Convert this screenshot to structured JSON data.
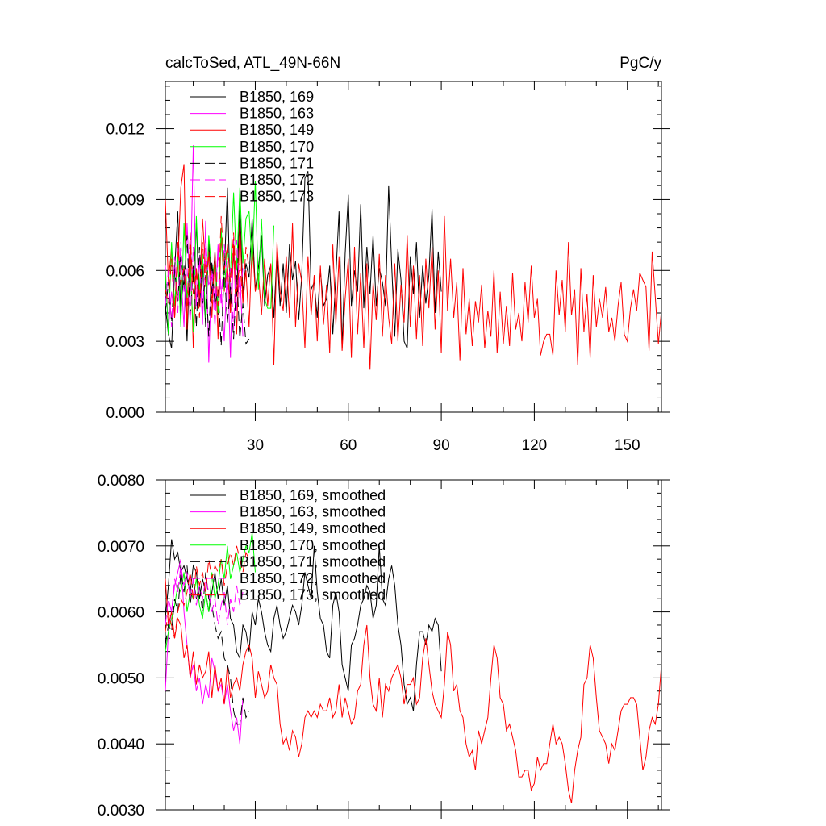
{
  "title_left": "calcToSed, ATL_49N-66N",
  "title_right": "PgC/y",
  "chart_data": [
    {
      "type": "line",
      "panel": "top",
      "title": "calcToSed, ATL_49N-66N",
      "units": "PgC/y",
      "xlim": [
        1,
        161
      ],
      "ylim": [
        0.0,
        0.014
      ],
      "x_ticks": [
        30,
        60,
        90,
        120,
        150
      ],
      "y_ticks": [
        "0.000",
        "0.003",
        "0.006",
        "0.009",
        "0.012"
      ],
      "grid": false,
      "legend_position": "top-left",
      "series": [
        {
          "name": "B1850, 169",
          "color": "#000000",
          "dash": "solid",
          "values": [
            0.0045,
            0.0033,
            0.0027,
            0.006,
            0.0085,
            0.004,
            0.0062,
            0.003,
            0.007,
            0.0055,
            0.008,
            0.0045,
            0.0062,
            0.0036,
            0.0072,
            0.005,
            0.0068,
            0.0041,
            0.0076,
            0.0058,
            0.0095,
            0.0044,
            0.0067,
            0.0049,
            0.0088,
            0.005,
            0.0063,
            0.0057,
            0.0082,
            0.0052,
            0.0061,
            0.0075,
            0.0045,
            0.0058,
            0.0062,
            0.004,
            0.0068,
            0.0045,
            0.0063,
            0.0042,
            0.0071,
            0.0056,
            0.0064,
            0.0039,
            0.0058,
            0.0099,
            0.0102,
            0.0052,
            0.0055,
            0.004,
            0.006,
            0.0045,
            0.0048,
            0.0062,
            0.0033,
            0.0058,
            0.0085,
            0.0027,
            0.0067,
            0.0092,
            0.0045,
            0.006,
            0.0051,
            0.0088,
            0.0044,
            0.007,
            0.005,
            0.0075,
            0.0045,
            0.0061,
            0.0055,
            0.0045,
            0.0096,
            0.0062,
            0.0032,
            0.0069,
            0.0056,
            0.003,
            0.0027,
            0.0066,
            0.005,
            0.0072,
            0.004,
            0.0062,
            0.0046,
            0.0058,
            0.0086,
            0.0042,
            0.0068,
            0.0051
          ]
        },
        {
          "name": "B1850, 163",
          "color": "#ff00ff",
          "dash": "solid",
          "values": [
            0.0062,
            0.0035,
            0.0051,
            0.004,
            0.0072,
            0.006,
            0.0036,
            0.008,
            0.005,
            0.0113,
            0.0045,
            0.0066,
            0.0037,
            0.0081,
            0.0021,
            0.0063,
            0.0044,
            0.0071,
            0.0052,
            0.003,
            0.0064,
            0.0023,
            0.0074,
            0.0043,
            0.0058,
            0.0032
          ]
        },
        {
          "name": "B1850, 149",
          "color": "#ff0000",
          "dash": "solid",
          "values": [
            0.009,
            0.0055,
            0.007,
            0.004,
            0.0062,
            0.0095,
            0.0105,
            0.0035,
            0.0073,
            0.0027,
            0.0061,
            0.0048,
            0.0082,
            0.0059,
            0.0066,
            0.004,
            0.0068,
            0.0031,
            0.0075,
            0.0051,
            0.0062,
            0.0042,
            0.0071,
            0.0033,
            0.008,
            0.0046,
            0.006,
            0.0036,
            0.0073,
            0.0051,
            0.0059,
            0.0041,
            0.0065,
            0.0045,
            0.0063,
            0.002,
            0.0072,
            0.0051,
            0.0043,
            0.0066,
            0.004,
            0.008,
            0.0036,
            0.0063,
            0.0055,
            0.0027,
            0.0066,
            0.0041,
            0.0058,
            0.003,
            0.0062,
            0.0037,
            0.0054,
            0.0025,
            0.0071,
            0.0037,
            0.0066,
            0.0026,
            0.0048,
            0.0065,
            0.0023,
            0.007,
            0.0033,
            0.0059,
            0.0027,
            0.0063,
            0.0018,
            0.0055,
            0.0039,
            0.0067,
            0.0032,
            0.0058,
            0.004,
            0.0029,
            0.0063,
            0.003,
            0.0054,
            0.0038,
            0.0075,
            0.0036,
            0.0062,
            0.0031,
            0.0058,
            0.0028,
            0.0065,
            0.0044,
            0.007,
            0.0035,
            0.006,
            0.0025,
            0.0083,
            0.0043,
            0.0065,
            0.004,
            0.0055,
            0.0022,
            0.0061,
            0.0033,
            0.0048,
            0.0028,
            0.0047,
            0.0038,
            0.0054,
            0.0027,
            0.0043,
            0.0032,
            0.006,
            0.0025,
            0.0051,
            0.0029,
            0.0045,
            0.0028,
            0.0059,
            0.0035,
            0.0042,
            0.003,
            0.0055,
            0.0038,
            0.0062,
            0.004,
            0.0048,
            0.0024,
            0.003,
            0.0033,
            0.0033,
            0.0024,
            0.006,
            0.0041,
            0.0056,
            0.0034,
            0.0072,
            0.0041,
            0.0052,
            0.002,
            0.0061,
            0.0034,
            0.005,
            0.0023,
            0.0058,
            0.0036,
            0.0048,
            0.004,
            0.0053,
            0.0034,
            0.004,
            0.003,
            0.0045,
            0.0055,
            0.0033,
            0.003,
            0.0044,
            0.0052,
            0.0043,
            0.0059,
            0.0056,
            0.0053,
            0.0026,
            0.0068,
            0.0049,
            0.0029,
            0.0043,
            0.0079,
            0.0049,
            0.0029,
            0.0054,
            0.002,
            0.0031,
            0.0065,
            0.0038,
            0.0044
          ]
        },
        {
          "name": "B1850, 170",
          "color": "#00ff00",
          "dash": "solid",
          "values": [
            0.006,
            0.0033,
            0.0072,
            0.0045,
            0.0066,
            0.0036,
            0.008,
            0.0048,
            0.0062,
            0.0034,
            0.0083,
            0.0052,
            0.0067,
            0.004,
            0.0075,
            0.0058,
            0.0064,
            0.0042,
            0.0078,
            0.0052,
            0.0069,
            0.0058,
            0.0093,
            0.006,
            0.0095,
            0.0063,
            0.0082,
            0.0085,
            0.0061,
            0.0098,
            0.0052,
            0.0082,
            0.0048,
            0.0044,
            0.0044,
            0.0079
          ]
        },
        {
          "name": "B1850, 171",
          "color": "#000000",
          "dash": "12,6",
          "values": [
            0.0042,
            0.0055,
            0.0038,
            0.006,
            0.0047,
            0.0068,
            0.0052,
            0.0075,
            0.004,
            0.0062,
            0.0036,
            0.007,
            0.0046,
            0.0058,
            0.0032,
            0.0064,
            0.0045,
            0.0052,
            0.0028,
            0.0061,
            0.0038,
            0.0053,
            0.0031,
            0.0058,
            0.0031,
            0.0046,
            0.0029,
            0.0031
          ]
        },
        {
          "name": "B1850, 172",
          "color": "#ff00ff",
          "dash": "12,6",
          "values": [
            0.0045,
            0.006,
            0.0036,
            0.0066,
            0.0042,
            0.0072,
            0.0051,
            0.0061,
            0.0038,
            0.007,
            0.0049,
            0.0064,
            0.004,
            0.0074,
            0.0053,
            0.006,
            0.0036,
            0.0068,
            0.0045,
            0.0071,
            0.0052,
            0.0062,
            0.0035,
            0.0073,
            0.0048,
            0.0061
          ]
        },
        {
          "name": "B1850, 173",
          "color": "#ff0000",
          "dash": "12,6",
          "values": [
            0.0052,
            0.0046,
            0.0065,
            0.004,
            0.0072,
            0.0054,
            0.0061,
            0.0045,
            0.0076,
            0.005,
            0.006,
            0.004,
            0.0072,
            0.0053,
            0.0068,
            0.0046,
            0.0066,
            0.0045,
            0.0083,
            0.006,
            0.0071,
            0.0055,
            0.0076,
            0.0051,
            0.0063,
            0.0047,
            0.007,
            0.0061
          ]
        }
      ]
    },
    {
      "type": "line",
      "panel": "bottom",
      "xlim": [
        1,
        161
      ],
      "ylim": [
        0.003,
        0.008
      ],
      "y_ticks": [
        "0.0030",
        "0.0040",
        "0.0050",
        "0.0060",
        "0.0070",
        "0.0080"
      ],
      "grid": false,
      "legend_position": "top-left",
      "series": [
        {
          "name": "B1850, 169, smoothed",
          "color": "#000000",
          "dash": "solid",
          "values": [
            0.0059,
            0.0064,
            0.0071,
            0.0068,
            0.0069,
            0.0066,
            0.0067,
            0.0065,
            0.0063,
            0.0067,
            0.0066,
            0.0062,
            0.0065,
            0.0063,
            0.006,
            0.0063,
            0.0066,
            0.0062,
            0.0065,
            0.0061,
            0.0064,
            0.0059,
            0.0058,
            0.0054,
            0.0053,
            0.0058,
            0.0057,
            0.0054,
            0.006,
            0.0058,
            0.0062,
            0.006,
            0.0057,
            0.0055,
            0.0054,
            0.0059,
            0.0061,
            0.0058,
            0.0056,
            0.0057,
            0.0059,
            0.0061,
            0.006,
            0.0058,
            0.0061,
            0.0066,
            0.0064,
            0.0062,
            0.007,
            0.0063,
            0.0059,
            0.0058,
            0.0054,
            0.0053,
            0.0061,
            0.0063,
            0.006,
            0.0052,
            0.005,
            0.0048,
            0.0055,
            0.0056,
            0.0058,
            0.0061,
            0.0062,
            0.0064,
            0.0063,
            0.0059,
            0.0061,
            0.007,
            0.0062,
            0.0061,
            0.0065,
            0.0067,
            0.0064,
            0.0058,
            0.0055,
            0.0049,
            0.0046,
            0.0047,
            0.0045,
            0.0052,
            0.0057,
            0.0057,
            0.0055,
            0.0058,
            0.0057,
            0.0059,
            0.0058,
            0.0051
          ]
        },
        {
          "name": "B1850, 163, smoothed",
          "color": "#ff00ff",
          "dash": "solid",
          "values": [
            0.0048,
            0.0057,
            0.006,
            0.0064,
            0.0066,
            0.0068,
            0.006,
            0.0055,
            0.005,
            0.0052,
            0.0048,
            0.005,
            0.0046,
            0.0049,
            0.0047,
            0.0053,
            0.0051,
            0.0048,
            0.0049,
            0.0046,
            0.0049,
            0.0045,
            0.0042,
            0.0044,
            0.004,
            0.0047
          ]
        },
        {
          "name": "B1850, 149, smoothed",
          "color": "#ff0000",
          "dash": "solid",
          "values": [
            0.0065,
            0.0058,
            0.006,
            0.0056,
            0.0059,
            0.0058,
            0.0053,
            0.0055,
            0.005,
            0.0054,
            0.0049,
            0.0052,
            0.005,
            0.0051,
            0.0054,
            0.0047,
            0.0052,
            0.0048,
            0.005,
            0.0046,
            0.0052,
            0.0047,
            0.0049,
            0.005,
            0.0048,
            0.0052,
            0.0054,
            0.0055,
            0.0053,
            0.0047,
            0.0051,
            0.0049,
            0.0047,
            0.0048,
            0.0052,
            0.005,
            0.0049,
            0.0043,
            0.004,
            0.0041,
            0.0039,
            0.0042,
            0.0041,
            0.0038,
            0.004,
            0.0044,
            0.0045,
            0.0044,
            0.0045,
            0.0044,
            0.0046,
            0.0045,
            0.0045,
            0.0047,
            0.0044,
            0.0045,
            0.0049,
            0.0044,
            0.0047,
            0.0045,
            0.0043,
            0.0044,
            0.0048,
            0.0049,
            0.0055,
            0.0058,
            0.005,
            0.0046,
            0.0045,
            0.005,
            0.0044,
            0.0049,
            0.0048,
            0.005,
            0.0051,
            0.0052,
            0.005,
            0.0046,
            0.0049,
            0.0049,
            0.005,
            0.0046,
            0.0047,
            0.0053,
            0.0056,
            0.0052,
            0.0048,
            0.0046,
            0.0045,
            0.0044,
            0.0049,
            0.0057,
            0.0055,
            0.0048,
            0.0049,
            0.0045,
            0.0044,
            0.004,
            0.0038,
            0.0039,
            0.0036,
            0.0042,
            0.004,
            0.0042,
            0.0044,
            0.005,
            0.0055,
            0.0053,
            0.0047,
            0.0046,
            0.0042,
            0.0043,
            0.0041,
            0.0039,
            0.0035,
            0.0035,
            0.0036,
            0.0036,
            0.0033,
            0.0034,
            0.0038,
            0.0036,
            0.0037,
            0.0037,
            0.004,
            0.0043,
            0.004,
            0.0041,
            0.004,
            0.0037,
            0.0033,
            0.0031,
            0.0036,
            0.0039,
            0.0041,
            0.0049,
            0.005,
            0.0055,
            0.0053,
            0.0047,
            0.0042,
            0.0041,
            0.004,
            0.0037,
            0.004,
            0.0039,
            0.0042,
            0.0045,
            0.0046,
            0.0046,
            0.0047,
            0.0047,
            0.0046,
            0.0041,
            0.0036,
            0.0038,
            0.0042,
            0.0044,
            0.0043,
            0.0046,
            0.0052,
            0.0047,
            0.0052,
            0.0052,
            0.0048,
            0.0054,
            0.0052,
            0.0045,
            0.0046,
            0.0044,
            0.0042
          ]
        },
        {
          "name": "B1850, 170, smoothed",
          "color": "#00ff00",
          "dash": "solid",
          "values": [
            0.0054,
            0.0057,
            0.0059,
            0.0061,
            0.0064,
            0.0063,
            0.0066,
            0.006,
            0.0063,
            0.0062,
            0.0065,
            0.0061,
            0.0059,
            0.0063,
            0.006,
            0.0066,
            0.0062,
            0.0064,
            0.0068,
            0.0065,
            0.007,
            0.0065,
            0.0067,
            0.0069,
            0.0066,
            0.0068,
            0.007,
            0.0069,
            0.0072,
            0.0066
          ]
        },
        {
          "name": "B1850, 171, smoothed",
          "color": "#000000",
          "dash": "12,6",
          "values": [
            0.0055,
            0.0058,
            0.0057,
            0.0062,
            0.006,
            0.0066,
            0.0063,
            0.0067,
            0.0061,
            0.0065,
            0.0062,
            0.0064,
            0.006,
            0.0066,
            0.0062,
            0.0061,
            0.0058,
            0.0056,
            0.0057,
            0.0053,
            0.0052,
            0.005,
            0.0045,
            0.0043,
            0.0043,
            0.0047,
            0.0044,
            0.0045
          ]
        },
        {
          "name": "B1850, 172, smoothed",
          "color": "#ff00ff",
          "dash": "12,6",
          "values": [
            0.0058,
            0.0062,
            0.006,
            0.0065,
            0.0063,
            0.0067,
            0.0064,
            0.0066,
            0.0062,
            0.0065,
            0.0061,
            0.0064,
            0.0062,
            0.0065,
            0.0063,
            0.006,
            0.0062,
            0.0058,
            0.0061,
            0.0063,
            0.0058,
            0.0062,
            0.006,
            0.0064,
            0.0061,
            0.0063
          ]
        },
        {
          "name": "B1850, 173, smoothed",
          "color": "#ff0000",
          "dash": "12,6",
          "values": [
            0.0057,
            0.006,
            0.0058,
            0.0056,
            0.006,
            0.0062,
            0.0061,
            0.0063,
            0.0066,
            0.0062,
            0.0067,
            0.0064,
            0.0066,
            0.0063,
            0.0068,
            0.0065,
            0.0067,
            0.0066,
            0.0068,
            0.0064,
            0.0067,
            0.0069,
            0.0067,
            0.007,
            0.0068,
            0.0066,
            0.0069,
            0.0068
          ]
        }
      ]
    }
  ]
}
